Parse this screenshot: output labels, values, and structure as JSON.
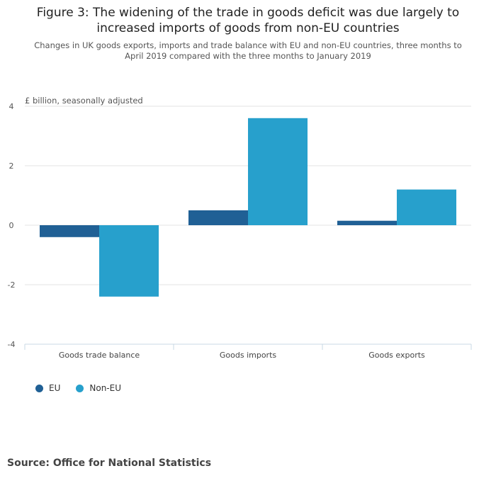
{
  "header": {
    "title": "Figure 3: The widening of the trade in goods deficit was due largely to increased imports of goods from non-EU countries",
    "subtitle": "Changes in UK goods exports, imports and trade balance with EU and non-EU countries, three months to April 2019 compared with the three months to January 2019"
  },
  "chart_data": {
    "type": "bar",
    "title": "Figure 3: The widening of the trade in goods deficit was due largely to increased imports of goods from non-EU countries",
    "subtitle": "Changes in UK goods exports, imports and trade balance with EU and non-EU countries, three months to April 2019 compared with the three months to January 2019",
    "ylabel": "£ billion, seasonally adjusted",
    "xlabel": "",
    "categories": [
      "Goods trade balance",
      "Goods imports",
      "Goods exports"
    ],
    "series": [
      {
        "name": "EU",
        "color": "#206095",
        "values": [
          -0.4,
          0.5,
          0.15
        ]
      },
      {
        "name": "Non-EU",
        "color": "#27a0cc",
        "values": [
          -2.4,
          3.6,
          1.2
        ]
      }
    ],
    "ylim": [
      -4,
      4
    ],
    "yticks": [
      -4,
      -2,
      0,
      2,
      4
    ],
    "grid": true,
    "legend": "bottom-left"
  },
  "legend": {
    "items": [
      {
        "label": "EU",
        "color": "#206095"
      },
      {
        "label": "Non-EU",
        "color": "#27a0cc"
      }
    ]
  },
  "footer": {
    "source": "Source: Office for National Statistics"
  }
}
